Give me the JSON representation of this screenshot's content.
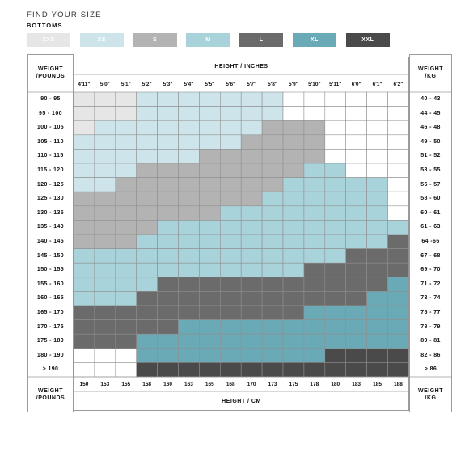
{
  "header": {
    "title": "FIND YOUR SIZE",
    "subtitle": "BOTTOMS"
  },
  "sizes": [
    {
      "label": "XXS",
      "color": "#e6e6e6",
      "text_color": "#ffffff"
    },
    {
      "label": "XS",
      "color": "#cde5ea",
      "text_color": "#ffffff"
    },
    {
      "label": "S",
      "color": "#b3b3b3",
      "text_color": "#ffffff"
    },
    {
      "label": "M",
      "color": "#a9d3da",
      "text_color": "#ffffff"
    },
    {
      "label": "L",
      "color": "#6b6b6b",
      "text_color": "#ffffff"
    },
    {
      "label": "XL",
      "color": "#6aaab6",
      "text_color": "#ffffff"
    },
    {
      "label": "XXL",
      "color": "#4a4a4a",
      "text_color": "#ffffff"
    }
  ],
  "labels": {
    "weight_pounds": "WEIGHT\n/POUNDS",
    "weight_kg": "WEIGHT\n/KG",
    "height_inches": "HEIGHT / INCHES",
    "height_cm": "HEIGHT / CM"
  },
  "chart_data": {
    "type": "heatmap",
    "title": "FIND YOUR SIZE",
    "subtitle": "BOTTOMS",
    "xlabel_top": "HEIGHT / INCHES",
    "xlabel_bottom": "HEIGHT / CM",
    "ylabel_left": "WEIGHT /POUNDS",
    "ylabel_right": "WEIGHT /KG",
    "height_inches": [
      "4'11\"",
      "5'0\"",
      "5'1\"",
      "5'2\"",
      "5'3\"",
      "5'4\"",
      "5'5\"",
      "5'6\"",
      "5'7\"",
      "5'8\"",
      "5'9\"",
      "5'10\"",
      "5'11\"",
      "6'0\"",
      "6'1\"",
      "6'2\""
    ],
    "height_cm": [
      "150",
      "153",
      "155",
      "158",
      "160",
      "163",
      "165",
      "168",
      "170",
      "173",
      "175",
      "178",
      "180",
      "183",
      "185",
      "188"
    ],
    "weight_pounds": [
      "90 - 95",
      "95 - 100",
      "100 - 105",
      "105 - 110",
      "110 - 115",
      "115 - 120",
      "120 - 125",
      "125 - 130",
      "130 - 135",
      "135 - 140",
      "140 - 145",
      "145 - 150",
      "150 - 155",
      "155 - 160",
      "160 - 165",
      "165 - 170",
      "170 - 175",
      "175 - 180",
      "180 - 190",
      "> 190"
    ],
    "weight_kg": [
      "40 - 43",
      "44 - 45",
      "46 - 48",
      "49 - 50",
      "51 - 52",
      "53 - 55",
      "56 - 57",
      "58 - 60",
      "60 - 61",
      "61 - 63",
      "64 -66",
      "67 - 68",
      "69 - 70",
      "71 - 72",
      "73 - 74",
      "75 - 77",
      "78 - 79",
      "80 - 81",
      "82 - 86",
      "> 86"
    ],
    "grid": [
      [
        "XXS",
        "XXS",
        "XXS",
        "XS",
        "XS",
        "XS",
        "XS",
        "XS",
        "XS",
        "XS",
        "",
        "",
        "",
        "",
        "",
        ""
      ],
      [
        "XXS",
        "XXS",
        "XXS",
        "XS",
        "XS",
        "XS",
        "XS",
        "XS",
        "XS",
        "XS",
        "",
        "",
        "",
        "",
        "",
        ""
      ],
      [
        "XXS",
        "XS",
        "XS",
        "XS",
        "XS",
        "XS",
        "XS",
        "XS",
        "XS",
        "S",
        "S",
        "S",
        "",
        "",
        "",
        ""
      ],
      [
        "XS",
        "XS",
        "XS",
        "XS",
        "XS",
        "XS",
        "XS",
        "XS",
        "S",
        "S",
        "S",
        "S",
        "",
        "",
        "",
        ""
      ],
      [
        "XS",
        "XS",
        "XS",
        "XS",
        "XS",
        "XS",
        "S",
        "S",
        "S",
        "S",
        "S",
        "S",
        "",
        "",
        "",
        ""
      ],
      [
        "XS",
        "XS",
        "XS",
        "S",
        "S",
        "S",
        "S",
        "S",
        "S",
        "S",
        "S",
        "M",
        "M",
        "",
        "",
        ""
      ],
      [
        "XS",
        "XS",
        "S",
        "S",
        "S",
        "S",
        "S",
        "S",
        "S",
        "S",
        "M",
        "M",
        "M",
        "M",
        "M",
        ""
      ],
      [
        "S",
        "S",
        "S",
        "S",
        "S",
        "S",
        "S",
        "S",
        "S",
        "M",
        "M",
        "M",
        "M",
        "M",
        "M",
        ""
      ],
      [
        "S",
        "S",
        "S",
        "S",
        "S",
        "S",
        "S",
        "M",
        "M",
        "M",
        "M",
        "M",
        "M",
        "M",
        "M",
        ""
      ],
      [
        "S",
        "S",
        "S",
        "S",
        "M",
        "M",
        "M",
        "M",
        "M",
        "M",
        "M",
        "M",
        "M",
        "M",
        "M",
        "M"
      ],
      [
        "S",
        "S",
        "S",
        "M",
        "M",
        "M",
        "M",
        "M",
        "M",
        "M",
        "M",
        "M",
        "M",
        "M",
        "M",
        "L"
      ],
      [
        "M",
        "M",
        "M",
        "M",
        "M",
        "M",
        "M",
        "M",
        "M",
        "M",
        "M",
        "M",
        "M",
        "L",
        "L",
        "L"
      ],
      [
        "M",
        "M",
        "M",
        "M",
        "M",
        "M",
        "M",
        "M",
        "M",
        "M",
        "M",
        "L",
        "L",
        "L",
        "L",
        "L"
      ],
      [
        "M",
        "M",
        "M",
        "M",
        "L",
        "L",
        "L",
        "L",
        "L",
        "L",
        "L",
        "L",
        "L",
        "L",
        "L",
        "XL"
      ],
      [
        "M",
        "M",
        "M",
        "L",
        "L",
        "L",
        "L",
        "L",
        "L",
        "L",
        "L",
        "L",
        "L",
        "L",
        "XL",
        "XL"
      ],
      [
        "L",
        "L",
        "L",
        "L",
        "L",
        "L",
        "L",
        "L",
        "L",
        "L",
        "L",
        "XL",
        "XL",
        "XL",
        "XL",
        "XL"
      ],
      [
        "L",
        "L",
        "L",
        "L",
        "L",
        "XL",
        "XL",
        "XL",
        "XL",
        "XL",
        "XL",
        "XL",
        "XL",
        "XL",
        "XL",
        "XL"
      ],
      [
        "L",
        "L",
        "L",
        "XL",
        "XL",
        "XL",
        "XL",
        "XL",
        "XL",
        "XL",
        "XL",
        "XL",
        "XL",
        "XL",
        "XL",
        "XL"
      ],
      [
        "",
        "",
        "",
        "XL",
        "XL",
        "XL",
        "XL",
        "XL",
        "XL",
        "XL",
        "XL",
        "XL",
        "XXL",
        "XXL",
        "XXL",
        "XXL"
      ],
      [
        "",
        "",
        "",
        "XXL",
        "XXL",
        "XXL",
        "XXL",
        "XXL",
        "XXL",
        "XXL",
        "XXL",
        "XXL",
        "XXL",
        "XXL",
        "XXL",
        "XXL"
      ]
    ],
    "legend": [
      "XXS",
      "XS",
      "S",
      "M",
      "L",
      "XL",
      "XXL"
    ],
    "legend_placement": "top",
    "grid_lines": true
  }
}
